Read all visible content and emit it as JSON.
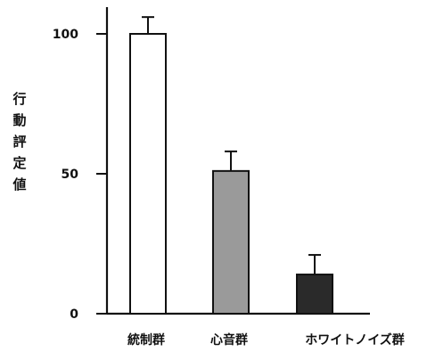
{
  "chart_data": {
    "type": "bar",
    "title": "",
    "ylabel": "行動評定値",
    "xlabel": "",
    "categories": [
      "統制群",
      "心音群",
      "ホワイトノイズ群"
    ],
    "values": [
      100,
      51,
      14
    ],
    "errors": [
      6,
      7,
      7
    ],
    "bar_colors": [
      "#ffffff",
      "#9a9a9a",
      "#2a2a2a"
    ],
    "ylim": [
      0,
      108
    ],
    "yticks": [
      0,
      50,
      100
    ],
    "ytick_labels": [
      "0",
      "50",
      "100"
    ],
    "grid": false,
    "legend": "none"
  }
}
